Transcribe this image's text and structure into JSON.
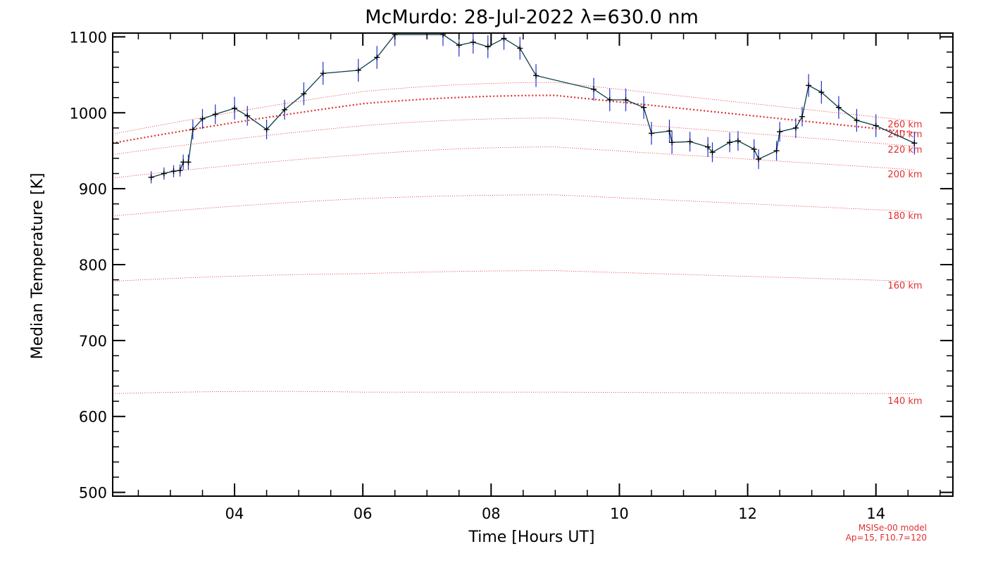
{
  "chart_data": {
    "type": "line",
    "title": "McMurdo: 28-Jul-2022 λ=630.0 nm",
    "xlabel": "Time [Hours UT]",
    "ylabel": "Median Temperature [K]",
    "xlim": [
      2.1,
      15.2
    ],
    "ylim": [
      495,
      1105
    ],
    "x_ticks": [
      4,
      6,
      8,
      10,
      12,
      14
    ],
    "x_tick_labels": [
      "04",
      "06",
      "08",
      "10",
      "12",
      "14"
    ],
    "y_ticks": [
      500,
      600,
      700,
      800,
      900,
      1000,
      1100
    ],
    "y_tick_labels": [
      "500",
      "600",
      "700",
      "800",
      "900",
      "1000",
      "1100"
    ],
    "grid": false,
    "colors": {
      "data": "#0a3a4a",
      "error": "#2030d0",
      "model": "#e03030"
    },
    "series": [
      {
        "x": [
          2.7,
          2.9,
          3.05,
          3.15,
          3.2,
          3.28,
          3.35,
          3.5,
          3.7,
          4.0,
          4.2,
          4.5,
          4.78,
          5.08,
          5.38,
          5.93,
          6.22,
          6.5,
          7.25,
          7.5,
          7.72,
          7.95,
          8.2,
          8.45,
          8.7,
          9.6,
          9.85,
          10.1,
          10.38,
          10.5,
          10.78,
          10.82,
          11.1,
          11.38,
          11.45,
          11.72,
          11.85,
          12.1,
          12.17,
          12.45,
          12.5,
          12.75,
          12.85,
          12.95,
          13.15,
          13.42,
          13.7,
          14.0,
          14.6
        ],
        "y": [
          915,
          920,
          923,
          924,
          935,
          935,
          978,
          992,
          998,
          1006,
          996,
          978,
          1004,
          1025,
          1052,
          1056,
          1073,
          1103,
          1103,
          1089,
          1093,
          1087,
          1098,
          1085,
          1049,
          1031,
          1017,
          1017,
          1007,
          973,
          976,
          961,
          962,
          955,
          948,
          961,
          963,
          952,
          939,
          950,
          975,
          980,
          995,
          1036,
          1027,
          1007,
          990,
          983,
          960
        ],
        "err": [
          8,
          8,
          8,
          8,
          10,
          10,
          13,
          13,
          13,
          15,
          13,
          13,
          13,
          15,
          15,
          15,
          15,
          15,
          15,
          15,
          15,
          15,
          15,
          15,
          15,
          15,
          15,
          15,
          15,
          15,
          15,
          15,
          13,
          13,
          13,
          13,
          13,
          13,
          13,
          13,
          13,
          13,
          13,
          15,
          15,
          15,
          15,
          15,
          15
        ]
      }
    ],
    "model_curves": [
      {
        "label": "140 km",
        "values": [
          630,
          632,
          632,
          630
        ]
      },
      {
        "label": "160 km",
        "values": [
          778,
          788,
          792,
          778
        ]
      },
      {
        "label": "180 km",
        "values": [
          864,
          887,
          892,
          870
        ]
      },
      {
        "label": "200 km",
        "values": [
          914,
          945,
          955,
          925
        ]
      },
      {
        "label": "220 km",
        "values": [
          945,
          983,
          993,
          956
        ]
      },
      {
        "label": "240 km",
        "values": [
          960,
          1012,
          1023,
          974
        ]
      },
      {
        "label": "260 km",
        "values": [
          972,
          1028,
          1040,
          989
        ]
      }
    ],
    "model_x": [
      2.1,
      6.0,
      9.0,
      14.6
    ],
    "footnote": [
      "MSISe-00 model",
      "Ap=15, F10.7=120"
    ]
  }
}
